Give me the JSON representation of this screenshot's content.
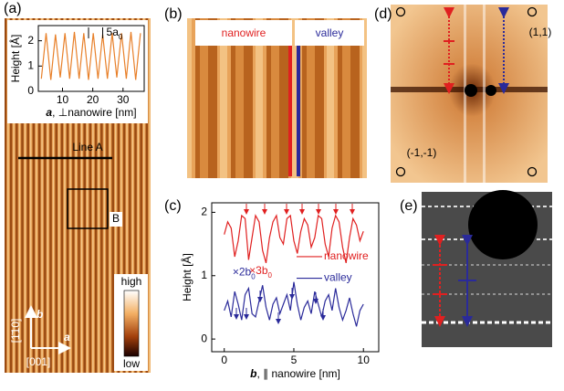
{
  "panels": {
    "a": {
      "label": "(a)",
      "line_label": "Line A",
      "box_label": "B",
      "colorbar_high": "high",
      "colorbar_low": "low",
      "axis_b": "b",
      "axis_a": "a",
      "dir_vertical": "[1̄10]",
      "dir_horizontal": "[001]"
    },
    "b": {
      "label": "(b)",
      "nanowire": "nanowire",
      "valley": "valley"
    },
    "c": {
      "label": "(c)"
    },
    "d": {
      "label": "(d)",
      "spot_11": "(1,1)",
      "spot_m1m1": "(-1,-1)"
    },
    "e": {
      "label": "(e)"
    }
  },
  "chart_data": [
    {
      "type": "line",
      "ylabel": "Height [Å]",
      "xlabel_var": "a",
      "xlabel_rest": ", ⊥nanowire [nm]",
      "annotation": {
        "text": "5a",
        "sub": "0"
      },
      "xlim": [
        2,
        37
      ],
      "ylim": [
        0,
        2.6
      ],
      "xticks": [
        10,
        20,
        30
      ],
      "yticks": [
        0,
        1,
        2
      ],
      "x": [
        3,
        4.56,
        6.12,
        7.68,
        9.24,
        10.8,
        12.36,
        13.92,
        15.48,
        17.04,
        18.6,
        20.16,
        21.72,
        23.28,
        24.84,
        26.4,
        27.96,
        29.52,
        31.08,
        32.64,
        34.2,
        35.76
      ],
      "series": [
        {
          "color": "#e8802a",
          "values": [
            0.5,
            2.3,
            0.45,
            2.25,
            0.55,
            2.3,
            0.5,
            2.35,
            0.5,
            2.3,
            0.45,
            2.3,
            0.5,
            2.25,
            0.5,
            2.3,
            0.55,
            2.3,
            0.5,
            2.35,
            0.45,
            2.3
          ]
        }
      ]
    },
    {
      "type": "line",
      "ylabel": "Height [Å]",
      "xlabel_var": "b",
      "xlabel_rest": ", ∥ nanowire [nm]",
      "annotations": [
        {
          "text": "×3b",
          "sub": "0",
          "color": "#e02020"
        },
        {
          "text": "×2b",
          "sub": "0",
          "color": "#2a2a9a"
        }
      ],
      "xlim": [
        -0.9,
        11.1
      ],
      "ylim": [
        -0.2,
        2.15
      ],
      "xticks": [
        0,
        5,
        10
      ],
      "yticks": [
        0,
        1,
        2
      ],
      "x": [
        0,
        0.25,
        0.5,
        0.75,
        1,
        1.25,
        1.5,
        1.75,
        2,
        2.25,
        2.5,
        2.75,
        3,
        3.25,
        3.5,
        3.75,
        4,
        4.25,
        4.5,
        4.75,
        5,
        5.25,
        5.5,
        5.75,
        6,
        6.25,
        6.5,
        6.75,
        7,
        7.25,
        7.5,
        7.75,
        8,
        8.25,
        8.5,
        8.75,
        9,
        9.25,
        9.5,
        9.75,
        10
      ],
      "series": [
        {
          "name": "nanowire",
          "color": "#e02020",
          "values": [
            1.65,
            1.85,
            1.75,
            1.3,
            1.55,
            1.95,
            1.9,
            1.25,
            1.6,
            1.95,
            1.85,
            1.4,
            1.2,
            1.6,
            1.85,
            1.95,
            1.6,
            1.5,
            1.9,
            1.95,
            1.55,
            1.35,
            1.7,
            1.9,
            1.8,
            1.45,
            1.6,
            1.95,
            1.9,
            1.5,
            1.3,
            1.75,
            1.95,
            1.85,
            1.45,
            1.2,
            1.6,
            1.9,
            1.8,
            1.55,
            1.7
          ]
        },
        {
          "name": "valley",
          "color": "#2a2a9a",
          "values": [
            0.45,
            0.6,
            0.35,
            0.75,
            0.55,
            0.3,
            0.7,
            0.8,
            0.4,
            0.35,
            0.6,
            0.85,
            0.5,
            0.3,
            0.55,
            0.65,
            0.4,
            0.55,
            0.7,
            0.45,
            0.9,
            0.55,
            0.3,
            0.5,
            0.6,
            0.4,
            0.75,
            0.55,
            0.35,
            0.6,
            0.7,
            0.45,
            0.8,
            0.5,
            0.3,
            0.45,
            0.65,
            0.4,
            0.2,
            0.45,
            0.55
          ]
        }
      ]
    }
  ]
}
